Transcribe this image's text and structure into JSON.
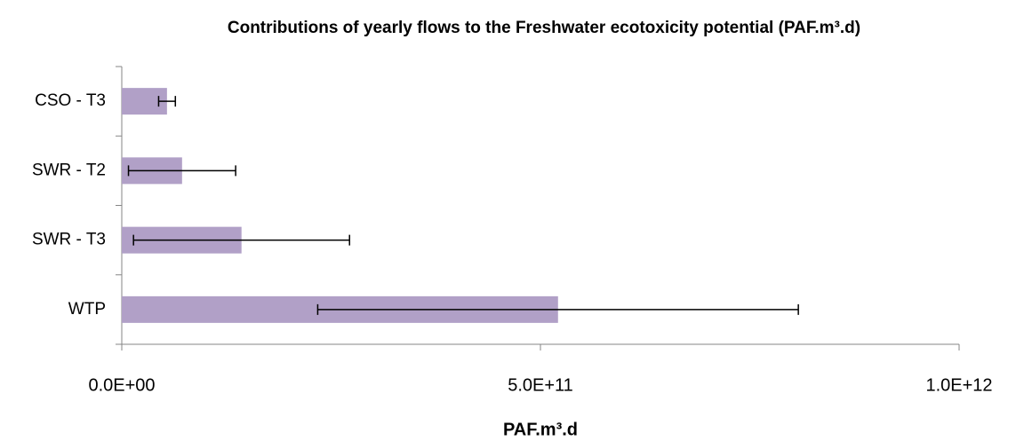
{
  "chart_data": {
    "type": "bar",
    "orientation": "horizontal",
    "title": "Contributions of yearly flows to the Freshwater ecotoxicity potential (PAF.m³.d)",
    "x_label": "PAF.m³.d",
    "categories": [
      "CSO - T3",
      "SWR - T2",
      "SWR - T3",
      "WTP"
    ],
    "values": [
      54000000000,
      72000000000,
      143000000000,
      521000000000
    ],
    "errors": [
      10000000000,
      64000000000,
      129000000000,
      287000000000
    ],
    "color": "#b1a0c7",
    "xlim": [
      0,
      1000000000000
    ],
    "xticks": [
      {
        "value": 0,
        "label": "0.0E+00"
      },
      {
        "value": 500000000000,
        "label": "5.0E+11"
      },
      {
        "value": 1000000000000,
        "label": "1.0E+12"
      }
    ],
    "grid": false
  }
}
